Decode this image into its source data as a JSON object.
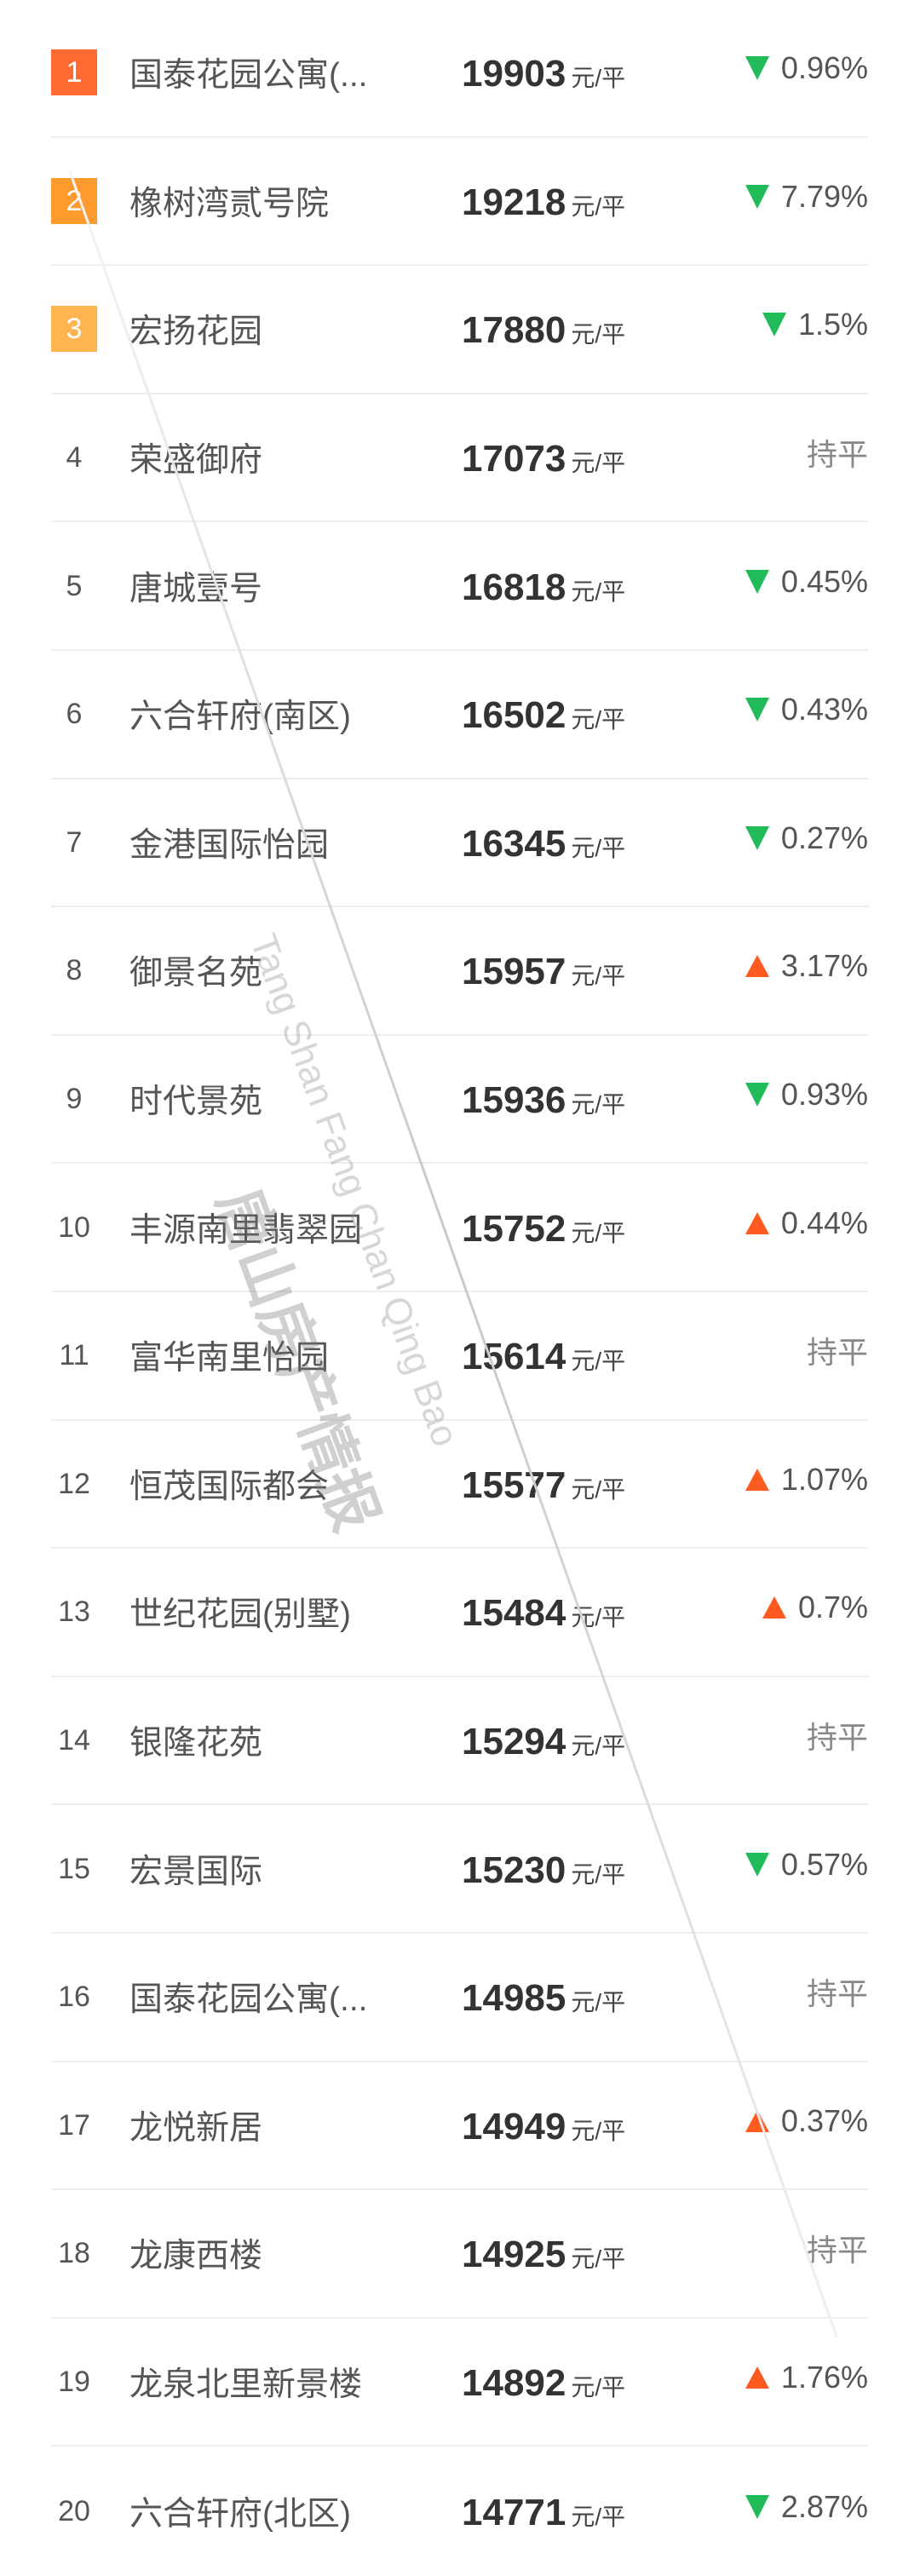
{
  "colors": {
    "rank1": "#ff6a33",
    "rank2": "#ff9a2e",
    "rank3": "#ffb54f",
    "down": "#22bb5a",
    "up": "#ff5a1f"
  },
  "unit": "元/平",
  "watermark": {
    "cn": "唐山房产情报",
    "en": "Tang Shan Fang Chan Qing Bao"
  },
  "rows": [
    {
      "rank": "1",
      "name": "国泰花园公寓(...",
      "price": "19903",
      "dir": "down",
      "change": "0.96%"
    },
    {
      "rank": "2",
      "name": "橡树湾贰号院",
      "price": "19218",
      "dir": "down",
      "change": "7.79%"
    },
    {
      "rank": "3",
      "name": "宏扬花园",
      "price": "17880",
      "dir": "down",
      "change": "1.5%"
    },
    {
      "rank": "4",
      "name": "荣盛御府",
      "price": "17073",
      "dir": "flat",
      "change": "持平"
    },
    {
      "rank": "5",
      "name": "唐城壹号",
      "price": "16818",
      "dir": "down",
      "change": "0.45%"
    },
    {
      "rank": "6",
      "name": "六合轩府(南区)",
      "price": "16502",
      "dir": "down",
      "change": "0.43%"
    },
    {
      "rank": "7",
      "name": "金港国际怡园",
      "price": "16345",
      "dir": "down",
      "change": "0.27%"
    },
    {
      "rank": "8",
      "name": "御景名苑",
      "price": "15957",
      "dir": "up",
      "change": "3.17%"
    },
    {
      "rank": "9",
      "name": "时代景苑",
      "price": "15936",
      "dir": "down",
      "change": "0.93%"
    },
    {
      "rank": "10",
      "name": "丰源南里翡翠园",
      "price": "15752",
      "dir": "up",
      "change": "0.44%"
    },
    {
      "rank": "11",
      "name": "富华南里怡园",
      "price": "15614",
      "dir": "flat",
      "change": "持平"
    },
    {
      "rank": "12",
      "name": "恒茂国际都会",
      "price": "15577",
      "dir": "up",
      "change": "1.07%"
    },
    {
      "rank": "13",
      "name": "世纪花园(别墅)",
      "price": "15484",
      "dir": "up",
      "change": "0.7%"
    },
    {
      "rank": "14",
      "name": "银隆花苑",
      "price": "15294",
      "dir": "flat",
      "change": "持平"
    },
    {
      "rank": "15",
      "name": "宏景国际",
      "price": "15230",
      "dir": "down",
      "change": "0.57%"
    },
    {
      "rank": "16",
      "name": "国泰花园公寓(...",
      "price": "14985",
      "dir": "flat",
      "change": "持平"
    },
    {
      "rank": "17",
      "name": "龙悦新居",
      "price": "14949",
      "dir": "up",
      "change": "0.37%"
    },
    {
      "rank": "18",
      "name": "龙康西楼",
      "price": "14925",
      "dir": "flat",
      "change": "持平"
    },
    {
      "rank": "19",
      "name": "龙泉北里新景楼",
      "price": "14892",
      "dir": "up",
      "change": "1.76%"
    },
    {
      "rank": "20",
      "name": "六合轩府(北区)",
      "price": "14771",
      "dir": "down",
      "change": "2.87%"
    }
  ]
}
